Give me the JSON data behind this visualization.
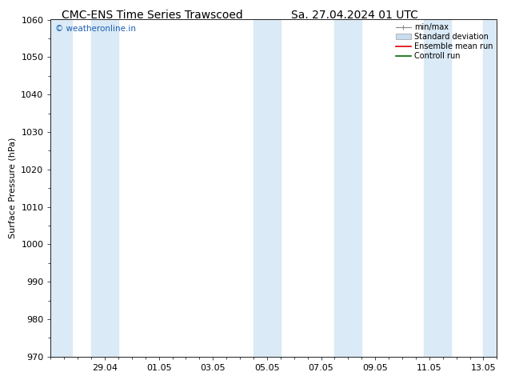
{
  "title": "CMC-ENS Time Series Trawscoed",
  "title2": "Sa. 27.04.2024 01 UTC",
  "ylabel": "Surface Pressure (hPa)",
  "ylim": [
    970,
    1060
  ],
  "yticks": [
    970,
    980,
    990,
    1000,
    1010,
    1020,
    1030,
    1040,
    1050,
    1060
  ],
  "xlim_start": 27.0,
  "xlim_end": 13.5,
  "xtick_labels": [
    "29.04",
    "01.05",
    "03.05",
    "05.05",
    "07.05",
    "09.05",
    "11.05",
    "13.05"
  ],
  "xtick_positions": [
    29.0,
    31.0,
    33.0,
    35.0,
    37.0,
    39.0,
    41.0,
    43.0
  ],
  "shaded_bands": [
    {
      "xmin": 27.0,
      "xmax": 27.8
    },
    {
      "xmin": 28.5,
      "xmax": 29.5
    },
    {
      "xmin": 34.5,
      "xmax": 35.5
    },
    {
      "xmin": 37.5,
      "xmax": 38.5
    },
    {
      "xmin": 40.8,
      "xmax": 41.8
    },
    {
      "xmin": 43.0,
      "xmax": 43.5
    }
  ],
  "shade_color": "#daeaf6",
  "background_color": "#ffffff",
  "watermark_text": "© weatheronline.in",
  "watermark_color": "#1a5fb4",
  "title_fontsize": 10,
  "axis_fontsize": 8,
  "tick_fontsize": 8,
  "legend_fontsize": 7
}
